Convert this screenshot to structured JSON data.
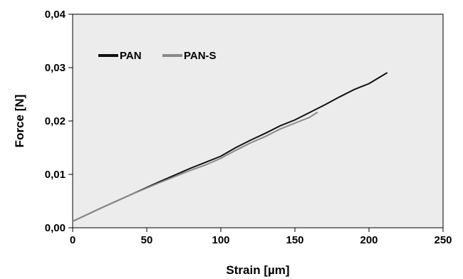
{
  "chart_data": {
    "type": "line",
    "xlabel": "Strain [µm]",
    "ylabel": "Force [N]",
    "xlim": [
      0,
      250
    ],
    "ylim": [
      0,
      0.04
    ],
    "x_ticks": [
      0,
      50,
      100,
      150,
      200,
      250
    ],
    "x_tick_labels": [
      "0",
      "50",
      "100",
      "150",
      "200",
      "250"
    ],
    "y_ticks": [
      0,
      0.01,
      0.02,
      0.03,
      0.04
    ],
    "y_tick_labels": [
      "0,00",
      "0,01",
      "0,02",
      "0,03",
      "0,04"
    ],
    "grid": false,
    "legend_position": "top-left",
    "series": [
      {
        "name": "PAN",
        "color": "#111111",
        "x": [
          0,
          20,
          40,
          60,
          80,
          90,
          100,
          110,
          120,
          130,
          140,
          150,
          160,
          170,
          180,
          190,
          200,
          212
        ],
        "y": [
          0.0012,
          0.0038,
          0.0063,
          0.0088,
          0.0112,
          0.0123,
          0.0134,
          0.015,
          0.0164,
          0.0177,
          0.0191,
          0.0202,
          0.0216,
          0.023,
          0.0245,
          0.0259,
          0.027,
          0.029
        ]
      },
      {
        "name": "PAN-S",
        "color": "#8a8a8a",
        "x": [
          0,
          20,
          40,
          60,
          80,
          90,
          100,
          110,
          120,
          130,
          140,
          150,
          160,
          165
        ],
        "y": [
          0.0012,
          0.0038,
          0.0063,
          0.0086,
          0.0108,
          0.0118,
          0.013,
          0.0145,
          0.0159,
          0.0171,
          0.0185,
          0.0196,
          0.0207,
          0.0216
        ]
      }
    ]
  }
}
